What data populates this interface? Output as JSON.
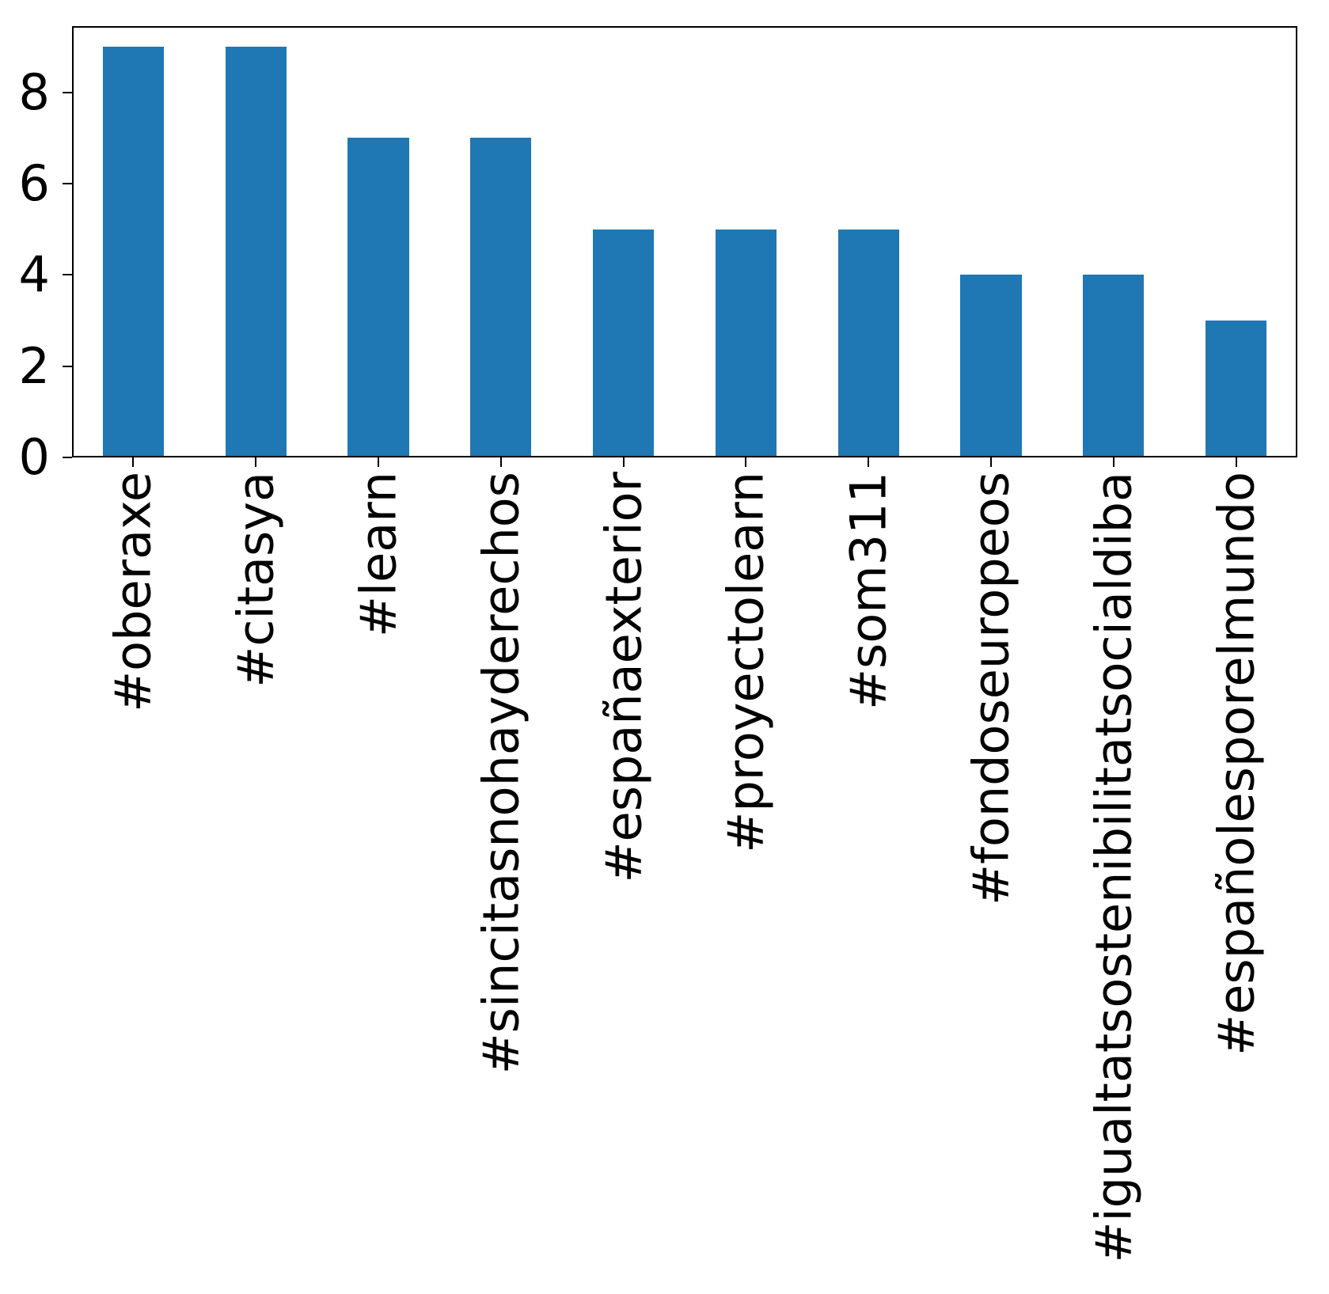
{
  "chart_data": {
    "type": "bar",
    "title": "",
    "xlabel": "",
    "ylabel": "",
    "categories": [
      "#oberaxe",
      "#citasya",
      "#learn",
      "#sincitasnohayderechos",
      "#españaexterior",
      "#proyectolearn",
      "#som311",
      "#fondoseuropeos",
      "#igualtatsostenibilitatsocialdiba",
      "#españolesporelmundo"
    ],
    "values": [
      9,
      9,
      7,
      7,
      5,
      5,
      5,
      4,
      4,
      3
    ],
    "yticks": [
      0,
      2,
      4,
      6,
      8
    ],
    "ylim": [
      0,
      9.45
    ],
    "bar_color": "#1f77b4",
    "background_color": "#ffffff",
    "text_color": "#000000",
    "grid": false,
    "legend": null,
    "x_tick_rotation": 90,
    "orientation": "vertical"
  }
}
